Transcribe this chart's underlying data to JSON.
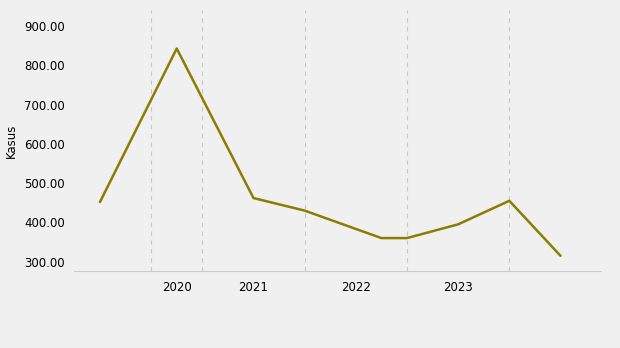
{
  "x_values": [
    2018.75,
    2019.5,
    2020.25,
    2020.75,
    2021.5,
    2021.75,
    2022.25,
    2022.75,
    2023.25
  ],
  "y_values": [
    452,
    843,
    462,
    430,
    360,
    360,
    395,
    455,
    315
  ],
  "line_color": "#8B7D00",
  "line_width": 1.8,
  "ylabel": "Kasus",
  "ylim": [
    275,
    940
  ],
  "yticks": [
    300.0,
    400.0,
    500.0,
    600.0,
    700.0,
    800.0,
    900.0
  ],
  "xlim": [
    2018.5,
    2023.65
  ],
  "vlines": [
    2019.25,
    2019.75,
    2020.75,
    2021.75,
    2022.75
  ],
  "xticks": [
    2019.5,
    2020.25,
    2021.25,
    2022.25
  ],
  "xtick_labels": [
    "2020",
    "2021",
    "2022",
    "2023"
  ],
  "grid_color": "#c8c8c8",
  "background_color": "#f0f0f0",
  "font_size": 8.5,
  "ylabel_fontsize": 8.5
}
